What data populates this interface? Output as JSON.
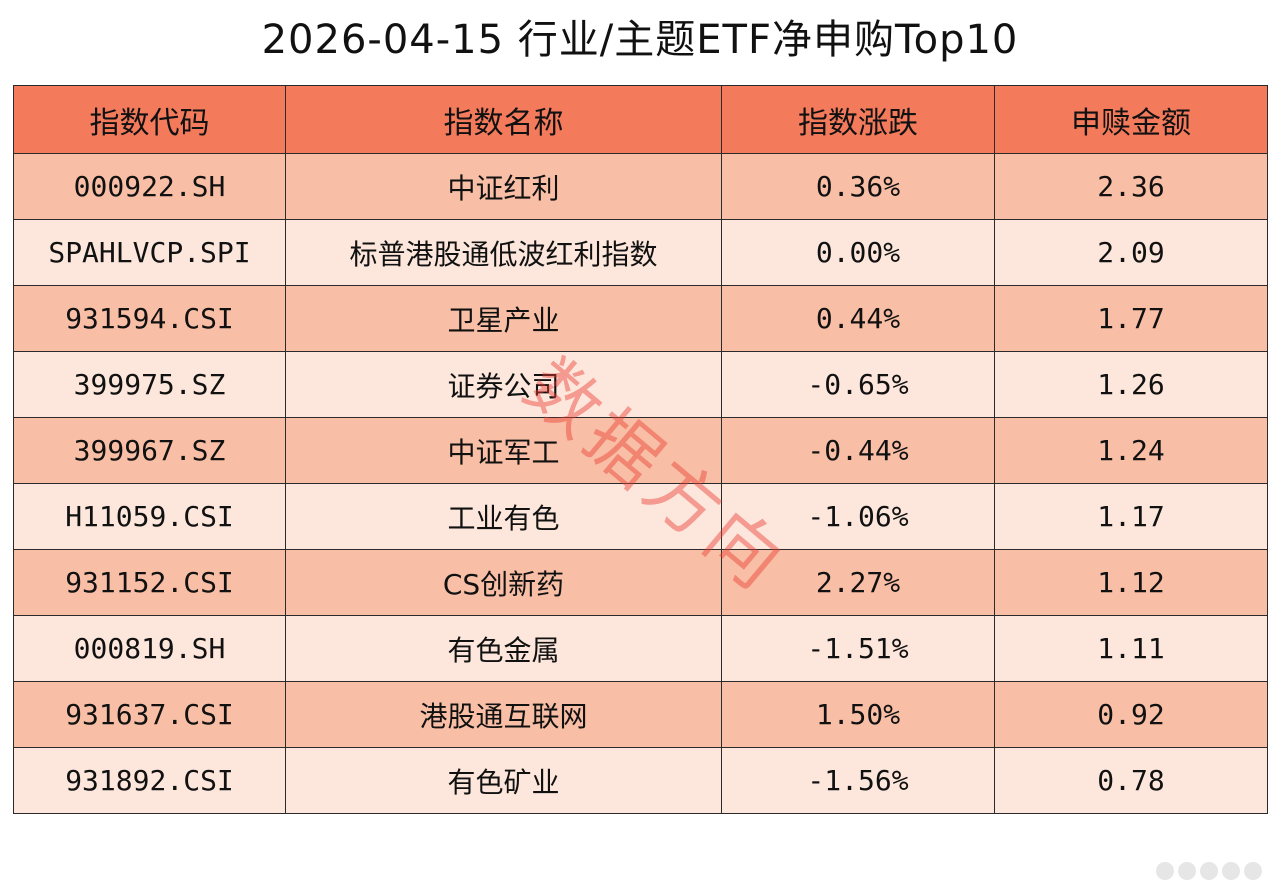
{
  "title": "2026-04-15 行业/主题ETF净申购Top10",
  "colors": {
    "header_bg": "#f47a5c",
    "row_dark": "#f9bfa6",
    "row_light": "#fde7dc",
    "border": "#2a2a2a",
    "watermark": "#e83c32"
  },
  "table": {
    "headers": [
      "指数代码",
      "指数名称",
      "指数涨跌",
      "申赎金额"
    ],
    "rows": [
      {
        "code": "000922.SH",
        "name": "中证红利",
        "change": "0.36%",
        "amount": "2.36"
      },
      {
        "code": "SPAHLVCP.SPI",
        "name": "标普港股通低波红利指数",
        "change": "0.00%",
        "amount": "2.09"
      },
      {
        "code": "931594.CSI",
        "name": "卫星产业",
        "change": "0.44%",
        "amount": "1.77"
      },
      {
        "code": "399975.SZ",
        "name": "证券公司",
        "change": "-0.65%",
        "amount": "1.26"
      },
      {
        "code": "399967.SZ",
        "name": "中证军工",
        "change": "-0.44%",
        "amount": "1.24"
      },
      {
        "code": "H11059.CSI",
        "name": "工业有色",
        "change": "-1.06%",
        "amount": "1.17"
      },
      {
        "code": "931152.CSI",
        "name": "CS创新药",
        "change": "2.27%",
        "amount": "1.12"
      },
      {
        "code": "000819.SH",
        "name": "有色金属",
        "change": "-1.51%",
        "amount": "1.11"
      },
      {
        "code": "931637.CSI",
        "name": "港股通互联网",
        "change": "1.50%",
        "amount": "0.92"
      },
      {
        "code": "931892.CSI",
        "name": "有色矿业",
        "change": "-1.56%",
        "amount": "0.78"
      }
    ]
  },
  "watermark": "数据方向"
}
